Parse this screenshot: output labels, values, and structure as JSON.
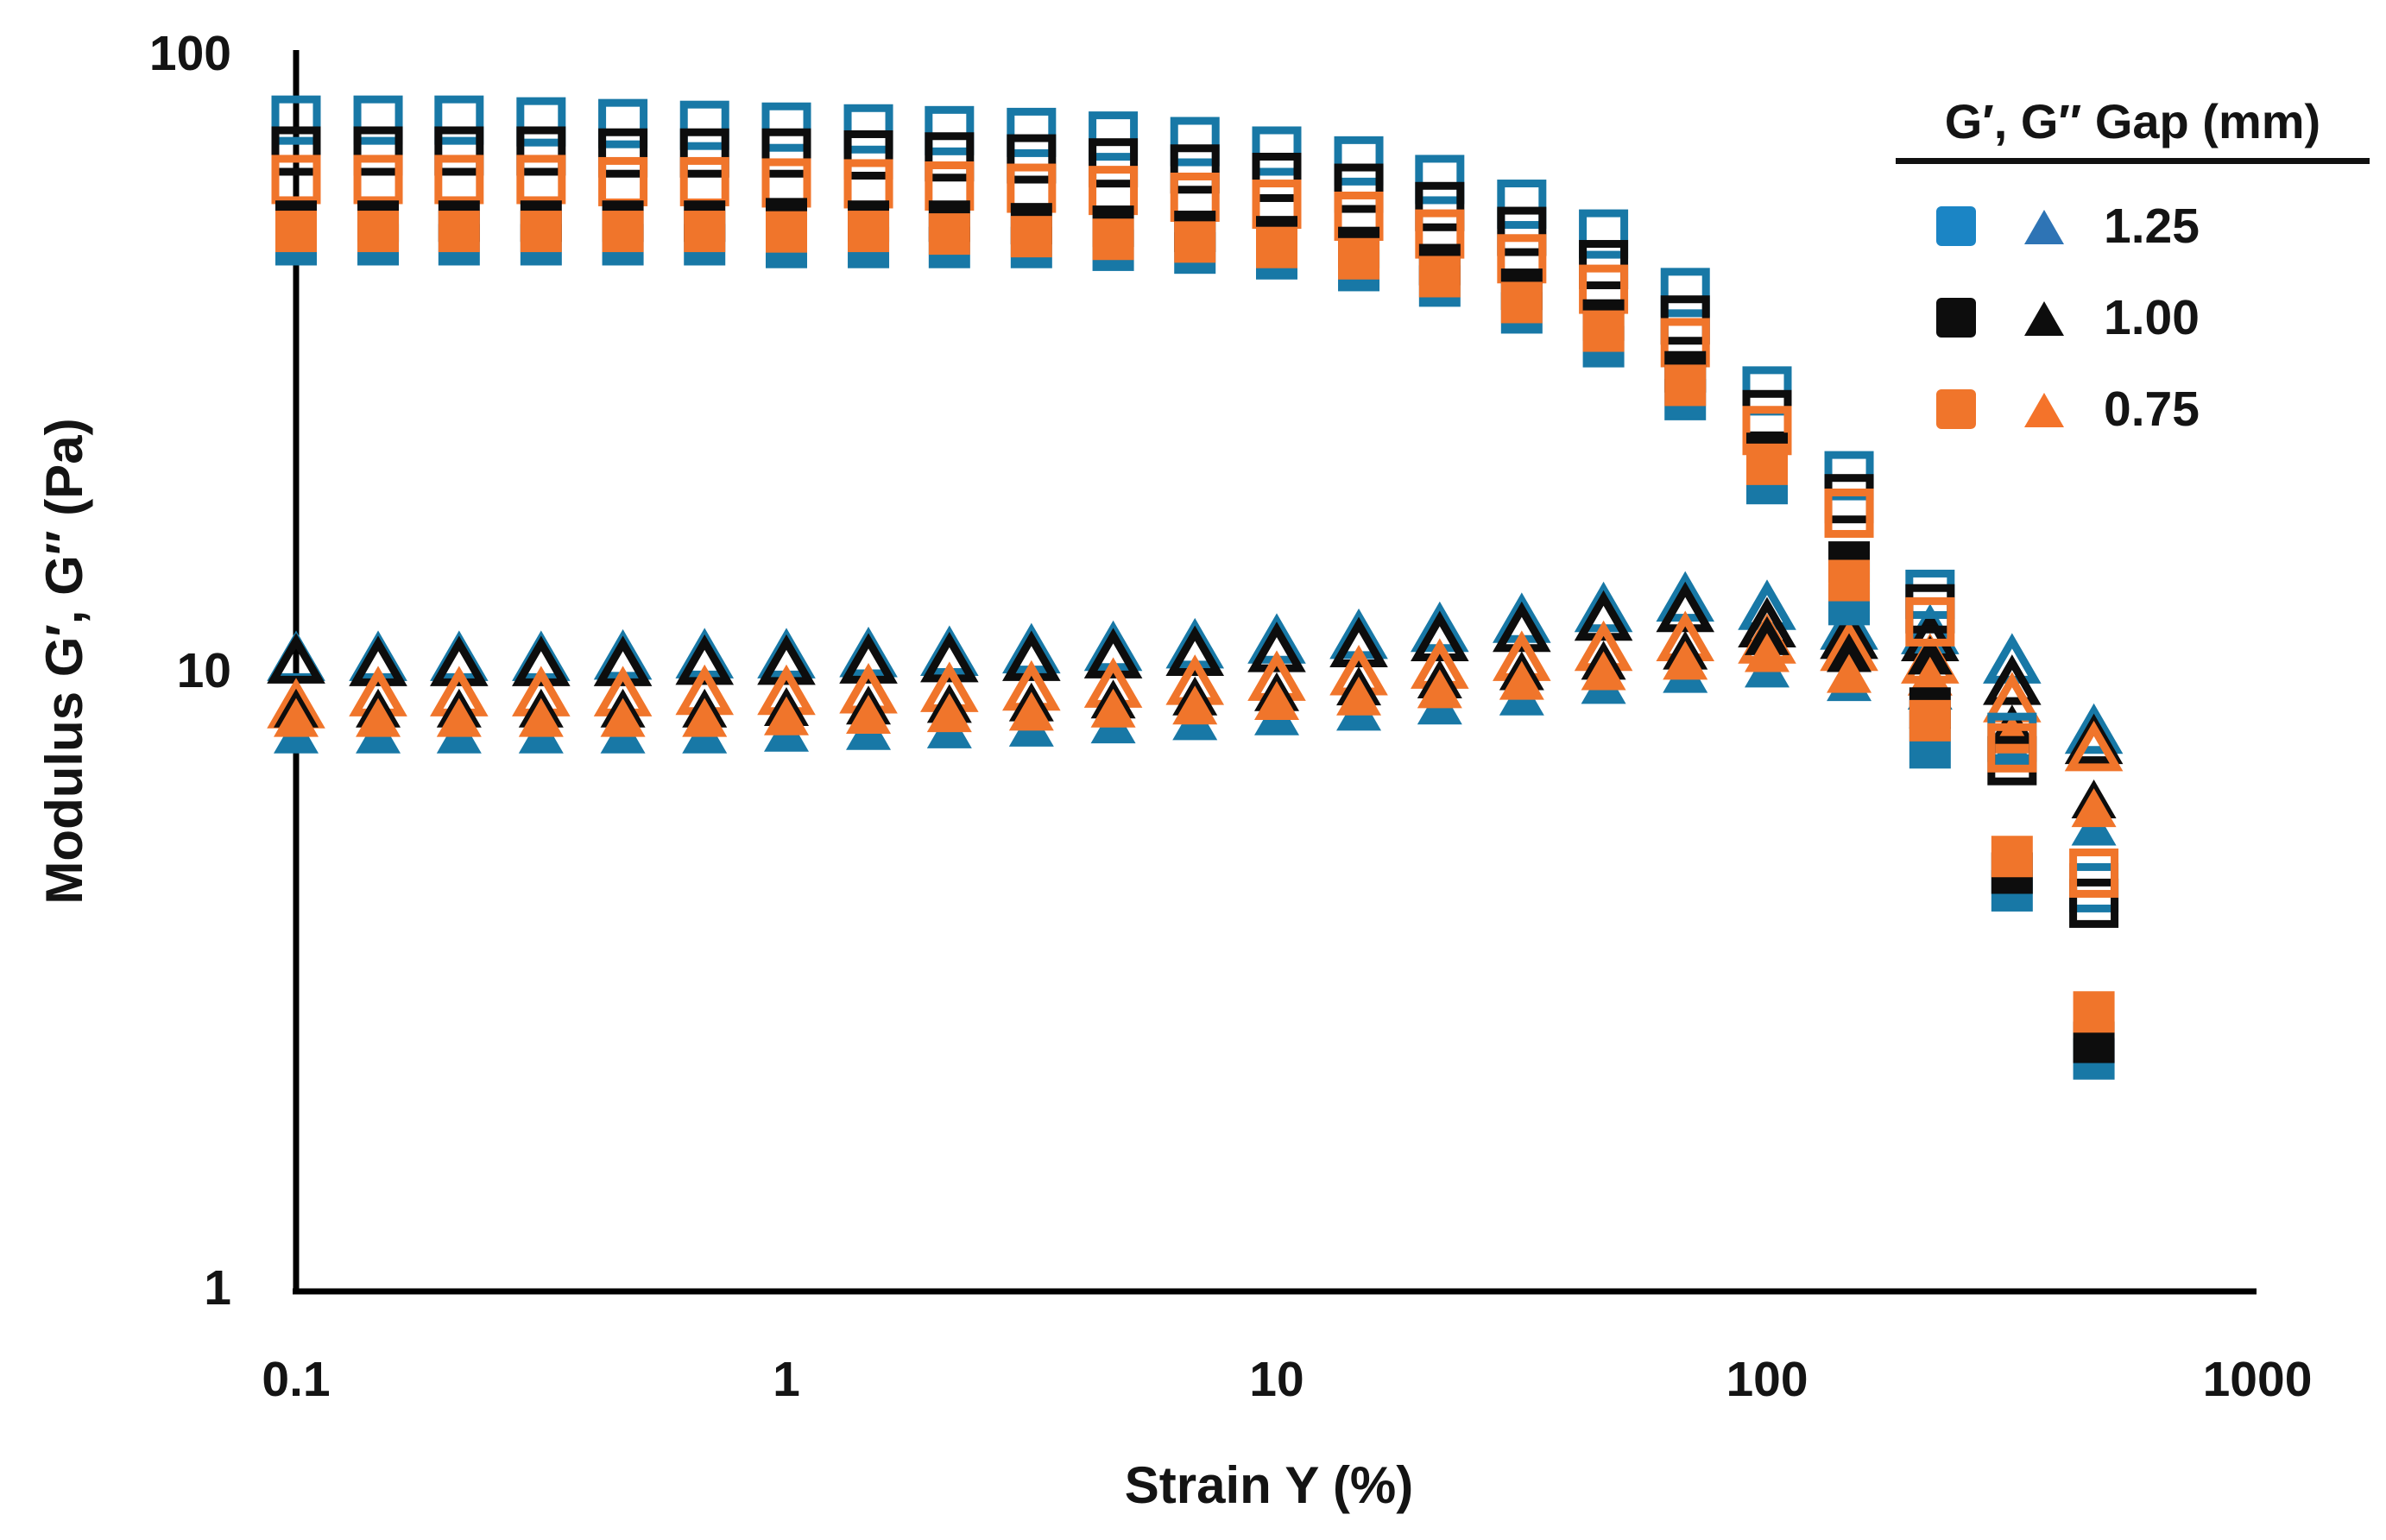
{
  "figure": {
    "y_axis": {
      "title": "Modulus G′, G″ (Pa)",
      "scale": "log",
      "min": 1,
      "max": 100,
      "ticks": [
        {
          "label": "100",
          "value": 100
        },
        {
          "label": "10",
          "value": 10
        },
        {
          "label": "1",
          "value": 1
        }
      ]
    },
    "x_axis": {
      "title": "Strain Y (%)",
      "scale": "log",
      "min": 0.1,
      "max": 1000,
      "ticks": [
        {
          "label": "0.1",
          "value": 0.1
        },
        {
          "label": "1",
          "value": 1
        },
        {
          "label": "10",
          "value": 10
        },
        {
          "label": "100",
          "value": 100
        },
        {
          "label": "1000",
          "value": 1000
        }
      ]
    },
    "legend": {
      "header": "G′, G″  Gap (mm)",
      "entries": [
        {
          "label": "1.25",
          "square_color": "#1B85C5",
          "triangle_color": "#2E74B5"
        },
        {
          "label": "1.00",
          "square_color": "#0D0D0D",
          "triangle_color": "#0D0D0D"
        },
        {
          "label": "0.75",
          "square_color": "#F0752B",
          "triangle_color": "#F4732A"
        }
      ]
    },
    "colors": {
      "axis": "#000000",
      "text": "#141414",
      "blue": "#1878A6",
      "black": "#0D0D0D",
      "orange": "#F0752B"
    }
  },
  "chart_data": {
    "type": "scatter",
    "title": "",
    "xlabel": "Strain Y (%)",
    "ylabel": "Modulus G′, G″ (Pa)",
    "x_scale": "log",
    "y_scale": "log",
    "xlim": [
      0.1,
      1000
    ],
    "ylim": [
      1,
      100
    ],
    "grid": false,
    "legend_position": "top-right",
    "strain_percent": [
      0.1,
      0.147,
      0.215,
      0.316,
      0.464,
      0.681,
      1,
      1.47,
      2.15,
      3.16,
      4.64,
      6.81,
      10,
      14.7,
      21.5,
      31.6,
      46.4,
      68.1,
      100,
      147,
      215,
      316,
      464
    ],
    "series": [
      {
        "id": "g2-open-triangle-blue",
        "modulus": "G″",
        "gap_mm": 1.25,
        "marker": "triangle",
        "style": "open",
        "color_key": "blue",
        "values": [
          10.5,
          10.5,
          10.5,
          10.5,
          10.55,
          10.6,
          10.6,
          10.65,
          10.7,
          10.8,
          10.9,
          11.0,
          11.2,
          11.4,
          11.7,
          12.1,
          12.6,
          13.1,
          12.7,
          11.8,
          11.6,
          10.4,
          8.0
        ]
      },
      {
        "id": "g2-open-triangle-black",
        "modulus": "G″",
        "gap_mm": 1.0,
        "marker": "triangle",
        "style": "open",
        "color_key": "black",
        "values": [
          10.4,
          10.3,
          10.3,
          10.3,
          10.3,
          10.35,
          10.35,
          10.4,
          10.45,
          10.5,
          10.6,
          10.7,
          10.85,
          11.05,
          11.3,
          11.7,
          12.2,
          12.6,
          11.9,
          11.4,
          11.3,
          9.6,
          7.7
        ]
      },
      {
        "id": "g2-open-triangle-orange",
        "modulus": "G″",
        "gap_mm": 0.75,
        "marker": "triangle",
        "style": "open",
        "color_key": "orange",
        "values": [
          8.8,
          9.2,
          9.2,
          9.2,
          9.2,
          9.25,
          9.25,
          9.3,
          9.35,
          9.4,
          9.5,
          9.6,
          9.75,
          9.95,
          10.2,
          10.5,
          10.9,
          11.3,
          11.2,
          10.9,
          10.4,
          9.0,
          7.5
        ]
      },
      {
        "id": "g2-solid-triangle-blue",
        "modulus": "G″",
        "gap_mm": 1.25,
        "marker": "triangle",
        "style": "solid",
        "color_key": "blue",
        "values": [
          7.9,
          7.9,
          7.9,
          7.9,
          7.9,
          7.9,
          7.95,
          8.0,
          8.05,
          8.1,
          8.2,
          8.3,
          8.45,
          8.6,
          8.8,
          9.1,
          9.5,
          9.9,
          10.1,
          9.6,
          9.3,
          7.5,
          5.6
        ]
      },
      {
        "id": "g2-solid-triangle-black",
        "modulus": "G″",
        "gap_mm": 1.0,
        "marker": "triangle",
        "style": "solid",
        "color_key": "black",
        "values": [
          8.7,
          8.7,
          8.7,
          8.7,
          8.7,
          8.7,
          8.75,
          8.8,
          8.85,
          8.9,
          9.0,
          9.1,
          9.25,
          9.45,
          9.7,
          10.0,
          10.4,
          10.8,
          11.4,
          10.7,
          10.6,
          8.2,
          6.2
        ]
      },
      {
        "id": "g2-solid-triangle-orange",
        "modulus": "G″",
        "gap_mm": 0.75,
        "marker": "triangle",
        "style": "solid",
        "color_key": "orange",
        "values": [
          8.4,
          8.4,
          8.4,
          8.4,
          8.4,
          8.4,
          8.45,
          8.5,
          8.55,
          8.6,
          8.7,
          8.8,
          8.95,
          9.1,
          9.35,
          9.65,
          10.0,
          10.4,
          10.7,
          9.9,
          9.8,
          7.9,
          6.0
        ]
      },
      {
        "id": "g1-open-square-blue",
        "modulus": "G′",
        "gap_mm": 1.25,
        "marker": "square",
        "style": "open",
        "color_key": "blue",
        "values": [
          78,
          78,
          78,
          77.5,
          77,
          76.5,
          76,
          75.5,
          75,
          74.5,
          73.5,
          72,
          69.5,
          67,
          62.5,
          57,
          51,
          41,
          28.4,
          20.7,
          13.3,
          7.8,
          4.45
        ]
      },
      {
        "id": "g1-open-square-black",
        "modulus": "G′",
        "gap_mm": 1.0,
        "marker": "square",
        "style": "open",
        "color_key": "black",
        "values": [
          69.5,
          69.5,
          69.5,
          69.5,
          69,
          69,
          69,
          68.5,
          68,
          67.5,
          66.5,
          65,
          63,
          60.5,
          56.5,
          51.5,
          45.5,
          37,
          26,
          19,
          12.6,
          7.15,
          4.2
        ]
      },
      {
        "id": "g1-open-square-orange",
        "modulus": "G′",
        "gap_mm": 0.75,
        "marker": "square",
        "style": "open",
        "color_key": "orange",
        "values": [
          62.5,
          62.5,
          62.5,
          62.5,
          62,
          62,
          61.7,
          61.5,
          61,
          60.5,
          60,
          58.5,
          57,
          54.5,
          51,
          46.5,
          41.5,
          34,
          24.5,
          18,
          12.0,
          7.5,
          4.7
        ]
      },
      {
        "id": "g1-solid-square-blue",
        "modulus": "G′",
        "gap_mm": 1.25,
        "marker": "square",
        "style": "solid",
        "color_key": "blue",
        "values": [
          49,
          49,
          49,
          49,
          49,
          49,
          48.5,
          48.5,
          48.5,
          48.5,
          48,
          47.5,
          46.5,
          44.5,
          42,
          38,
          33.5,
          27.5,
          20.1,
          12.8,
          7.5,
          4.4,
          2.35
        ]
      },
      {
        "id": "g1-solid-square-black",
        "modulus": "G′",
        "gap_mm": 1.0,
        "marker": "square",
        "style": "solid",
        "color_key": "black",
        "values": [
          53.5,
          53.5,
          53.5,
          53.5,
          53.5,
          53.5,
          54,
          53.5,
          53.5,
          53,
          52.5,
          51.5,
          50.5,
          48.5,
          45.5,
          41.5,
          37,
          30.5,
          22.5,
          15.0,
          8.7,
          4.7,
          2.5
        ]
      },
      {
        "id": "g1-solid-square-orange",
        "modulus": "G′",
        "gap_mm": 0.75,
        "marker": "square",
        "style": "solid",
        "color_key": "orange",
        "values": [
          51.5,
          51.5,
          51.5,
          51.5,
          51.5,
          51.5,
          51.4,
          51.5,
          51,
          50.5,
          50,
          49.5,
          48.5,
          46.5,
          43.5,
          39.5,
          35.5,
          29,
          21.6,
          14.0,
          8.3,
          5.0,
          2.8
        ]
      }
    ]
  }
}
